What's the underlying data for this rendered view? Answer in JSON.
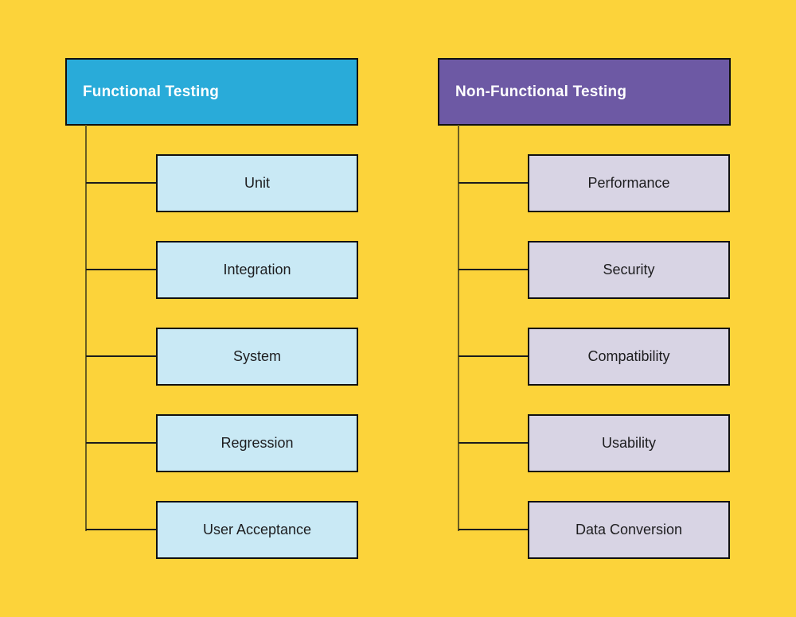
{
  "colors": {
    "background": "#FCD33A",
    "functional_header_bg": "#29ABD9",
    "functional_child_bg": "#C9E9F5",
    "nonfunctional_header_bg": "#6D59A4",
    "nonfunctional_child_bg": "#D8D4E4",
    "header_text": "#FFFFFF",
    "child_text": "#1D1D1F",
    "border": "#101010"
  },
  "trees": [
    {
      "header": {
        "label": "Functional Testing",
        "bg": "#29ABD9"
      },
      "child_bg": "#C9E9F5",
      "children": [
        {
          "label": "Unit"
        },
        {
          "label": "Integration"
        },
        {
          "label": "System"
        },
        {
          "label": "Regression"
        },
        {
          "label": "User Acceptance"
        }
      ]
    },
    {
      "header": {
        "label": "Non-Functional Testing",
        "bg": "#6D59A4"
      },
      "child_bg": "#D8D4E4",
      "children": [
        {
          "label": "Performance"
        },
        {
          "label": "Security"
        },
        {
          "label": "Compatibility"
        },
        {
          "label": "Usability"
        },
        {
          "label": "Data Conversion"
        }
      ]
    }
  ]
}
